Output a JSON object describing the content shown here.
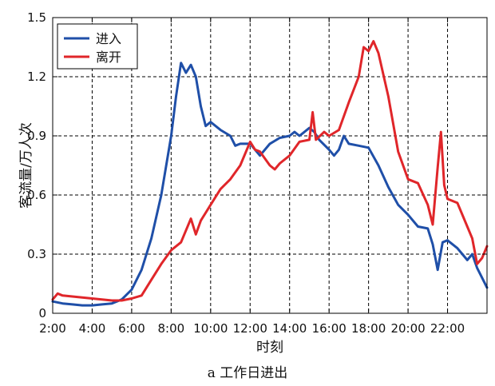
{
  "caption": "a 工作日进出",
  "chart_data": {
    "type": "line",
    "xlabel": "时刻",
    "ylabel": "客流量/万人次",
    "x_ticks": [
      "2:00",
      "4:00",
      "6:00",
      "8:00",
      "10:00",
      "12:00",
      "14:00",
      "16:00",
      "18:00",
      "20:00",
      "22:00"
    ],
    "x_range": [
      "2:00",
      "24:00"
    ],
    "y_ticks": [
      "0",
      "0.3",
      "0.6",
      "0.9",
      "1.2",
      "1.5"
    ],
    "ylim": [
      0,
      1.5
    ],
    "grid": true,
    "legend_position": "top-left",
    "series": [
      {
        "name": "进入",
        "color": "#1f4fa8",
        "points": [
          [
            "2:00",
            0.06
          ],
          [
            "2:30",
            0.05
          ],
          [
            "3:00",
            0.045
          ],
          [
            "3:30",
            0.04
          ],
          [
            "4:00",
            0.04
          ],
          [
            "4:30",
            0.045
          ],
          [
            "5:00",
            0.05
          ],
          [
            "5:30",
            0.07
          ],
          [
            "6:00",
            0.12
          ],
          [
            "6:30",
            0.22
          ],
          [
            "7:00",
            0.38
          ],
          [
            "7:30",
            0.6
          ],
          [
            "8:00",
            0.9
          ],
          [
            "8:15",
            1.1
          ],
          [
            "8:30",
            1.27
          ],
          [
            "8:45",
            1.22
          ],
          [
            "9:00",
            1.26
          ],
          [
            "9:15",
            1.2
          ],
          [
            "9:30",
            1.05
          ],
          [
            "9:45",
            0.95
          ],
          [
            "10:00",
            0.97
          ],
          [
            "10:30",
            0.93
          ],
          [
            "11:00",
            0.9
          ],
          [
            "11:15",
            0.85
          ],
          [
            "11:30",
            0.86
          ],
          [
            "12:00",
            0.86
          ],
          [
            "12:30",
            0.8
          ],
          [
            "13:00",
            0.86
          ],
          [
            "13:30",
            0.89
          ],
          [
            "14:00",
            0.9
          ],
          [
            "14:15",
            0.92
          ],
          [
            "14:30",
            0.9
          ],
          [
            "14:45",
            0.92
          ],
          [
            "15:00",
            0.94
          ],
          [
            "15:15",
            0.92
          ],
          [
            "15:30",
            0.88
          ],
          [
            "16:00",
            0.83
          ],
          [
            "16:15",
            0.8
          ],
          [
            "16:30",
            0.83
          ],
          [
            "16:45",
            0.9
          ],
          [
            "17:00",
            0.86
          ],
          [
            "17:30",
            0.85
          ],
          [
            "18:00",
            0.84
          ],
          [
            "18:30",
            0.75
          ],
          [
            "19:00",
            0.64
          ],
          [
            "19:30",
            0.55
          ],
          [
            "20:00",
            0.5
          ],
          [
            "20:30",
            0.44
          ],
          [
            "21:00",
            0.43
          ],
          [
            "21:15",
            0.35
          ],
          [
            "21:30",
            0.22
          ],
          [
            "21:45",
            0.36
          ],
          [
            "22:00",
            0.37
          ],
          [
            "22:30",
            0.33
          ],
          [
            "23:00",
            0.27
          ],
          [
            "23:15",
            0.3
          ],
          [
            "23:30",
            0.23
          ],
          [
            "23:45",
            0.18
          ],
          [
            "24:00",
            0.13
          ]
        ]
      },
      {
        "name": "离开",
        "color": "#e0262a",
        "points": [
          [
            "2:00",
            0.07
          ],
          [
            "2:15",
            0.1
          ],
          [
            "2:30",
            0.09
          ],
          [
            "3:00",
            0.085
          ],
          [
            "3:30",
            0.08
          ],
          [
            "4:00",
            0.075
          ],
          [
            "4:30",
            0.07
          ],
          [
            "5:00",
            0.065
          ],
          [
            "5:30",
            0.065
          ],
          [
            "6:00",
            0.075
          ],
          [
            "6:30",
            0.09
          ],
          [
            "7:00",
            0.17
          ],
          [
            "7:30",
            0.25
          ],
          [
            "8:00",
            0.32
          ],
          [
            "8:30",
            0.36
          ],
          [
            "9:00",
            0.48
          ],
          [
            "9:15",
            0.4
          ],
          [
            "9:30",
            0.47
          ],
          [
            "10:00",
            0.55
          ],
          [
            "10:30",
            0.63
          ],
          [
            "11:00",
            0.68
          ],
          [
            "11:30",
            0.75
          ],
          [
            "12:00",
            0.87
          ],
          [
            "12:15",
            0.83
          ],
          [
            "12:30",
            0.82
          ],
          [
            "13:00",
            0.75
          ],
          [
            "13:15",
            0.73
          ],
          [
            "13:30",
            0.76
          ],
          [
            "14:00",
            0.8
          ],
          [
            "14:30",
            0.87
          ],
          [
            "15:00",
            0.88
          ],
          [
            "15:10",
            1.02
          ],
          [
            "15:20",
            0.88
          ],
          [
            "15:45",
            0.92
          ],
          [
            "16:00",
            0.9
          ],
          [
            "16:30",
            0.93
          ],
          [
            "17:00",
            1.07
          ],
          [
            "17:30",
            1.2
          ],
          [
            "17:45",
            1.35
          ],
          [
            "18:00",
            1.33
          ],
          [
            "18:15",
            1.38
          ],
          [
            "18:30",
            1.32
          ],
          [
            "19:00",
            1.1
          ],
          [
            "19:30",
            0.82
          ],
          [
            "20:00",
            0.68
          ],
          [
            "20:30",
            0.66
          ],
          [
            "21:00",
            0.55
          ],
          [
            "21:15",
            0.45
          ],
          [
            "21:30",
            0.74
          ],
          [
            "21:40",
            0.92
          ],
          [
            "21:50",
            0.65
          ],
          [
            "22:00",
            0.58
          ],
          [
            "22:30",
            0.56
          ],
          [
            "23:00",
            0.44
          ],
          [
            "23:15",
            0.38
          ],
          [
            "23:30",
            0.25
          ],
          [
            "23:45",
            0.28
          ],
          [
            "24:00",
            0.34
          ]
        ]
      }
    ]
  }
}
